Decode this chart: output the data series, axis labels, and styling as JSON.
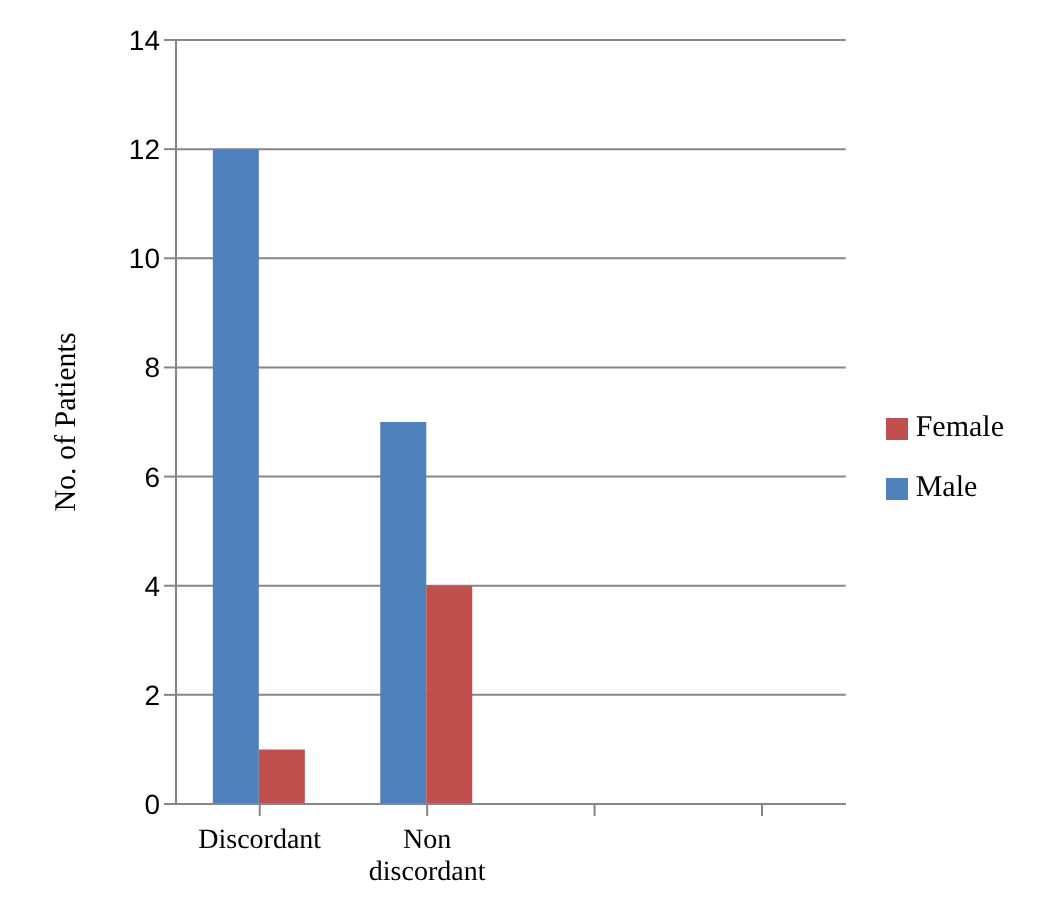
{
  "chart_data": {
    "type": "bar",
    "ylabel": "No. of Patients",
    "categories": [
      "Discordant",
      "Non discordant",
      null,
      null
    ],
    "series": [
      {
        "name": "Male",
        "color": "#4f81bd",
        "values": [
          12,
          7,
          null,
          null
        ]
      },
      {
        "name": "Female",
        "color": "#c0504d",
        "values": [
          1,
          4,
          null,
          null
        ]
      }
    ],
    "ylim": [
      0,
      14
    ],
    "yticks": [
      0,
      2,
      4,
      6,
      8,
      10,
      12,
      14
    ],
    "grid": "y",
    "legend": "right"
  }
}
